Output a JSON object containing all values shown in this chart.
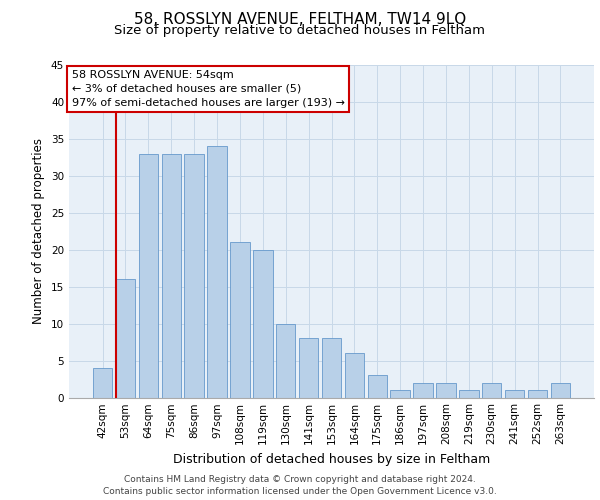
{
  "title1": "58, ROSSLYN AVENUE, FELTHAM, TW14 9LQ",
  "title2": "Size of property relative to detached houses in Feltham",
  "xlabel": "Distribution of detached houses by size in Feltham",
  "ylabel": "Number of detached properties",
  "categories": [
    "42sqm",
    "53sqm",
    "64sqm",
    "75sqm",
    "86sqm",
    "97sqm",
    "108sqm",
    "119sqm",
    "130sqm",
    "141sqm",
    "153sqm",
    "164sqm",
    "175sqm",
    "186sqm",
    "197sqm",
    "208sqm",
    "219sqm",
    "230sqm",
    "241sqm",
    "252sqm",
    "263sqm"
  ],
  "values": [
    4,
    16,
    33,
    33,
    33,
    34,
    21,
    20,
    10,
    8,
    8,
    6,
    3,
    1,
    2,
    2,
    1,
    2,
    1,
    1,
    2
  ],
  "bar_color": "#b8d0e8",
  "bar_edge_color": "#6699cc",
  "annotation_box_text": "58 ROSSLYN AVENUE: 54sqm\n← 3% of detached houses are smaller (5)\n97% of semi-detached houses are larger (193) →",
  "annotation_box_color": "#ffffff",
  "annotation_box_edgecolor": "#cc0000",
  "vline_color": "#cc0000",
  "ylim": [
    0,
    45
  ],
  "yticks": [
    0,
    5,
    10,
    15,
    20,
    25,
    30,
    35,
    40,
    45
  ],
  "grid_color": "#c8d8e8",
  "background_color": "#e8f0f8",
  "footer_line1": "Contains HM Land Registry data © Crown copyright and database right 2024.",
  "footer_line2": "Contains public sector information licensed under the Open Government Licence v3.0.",
  "title1_fontsize": 11,
  "title2_fontsize": 9.5,
  "xlabel_fontsize": 9,
  "ylabel_fontsize": 8.5,
  "tick_fontsize": 7.5,
  "annotation_fontsize": 8,
  "footer_fontsize": 6.5
}
